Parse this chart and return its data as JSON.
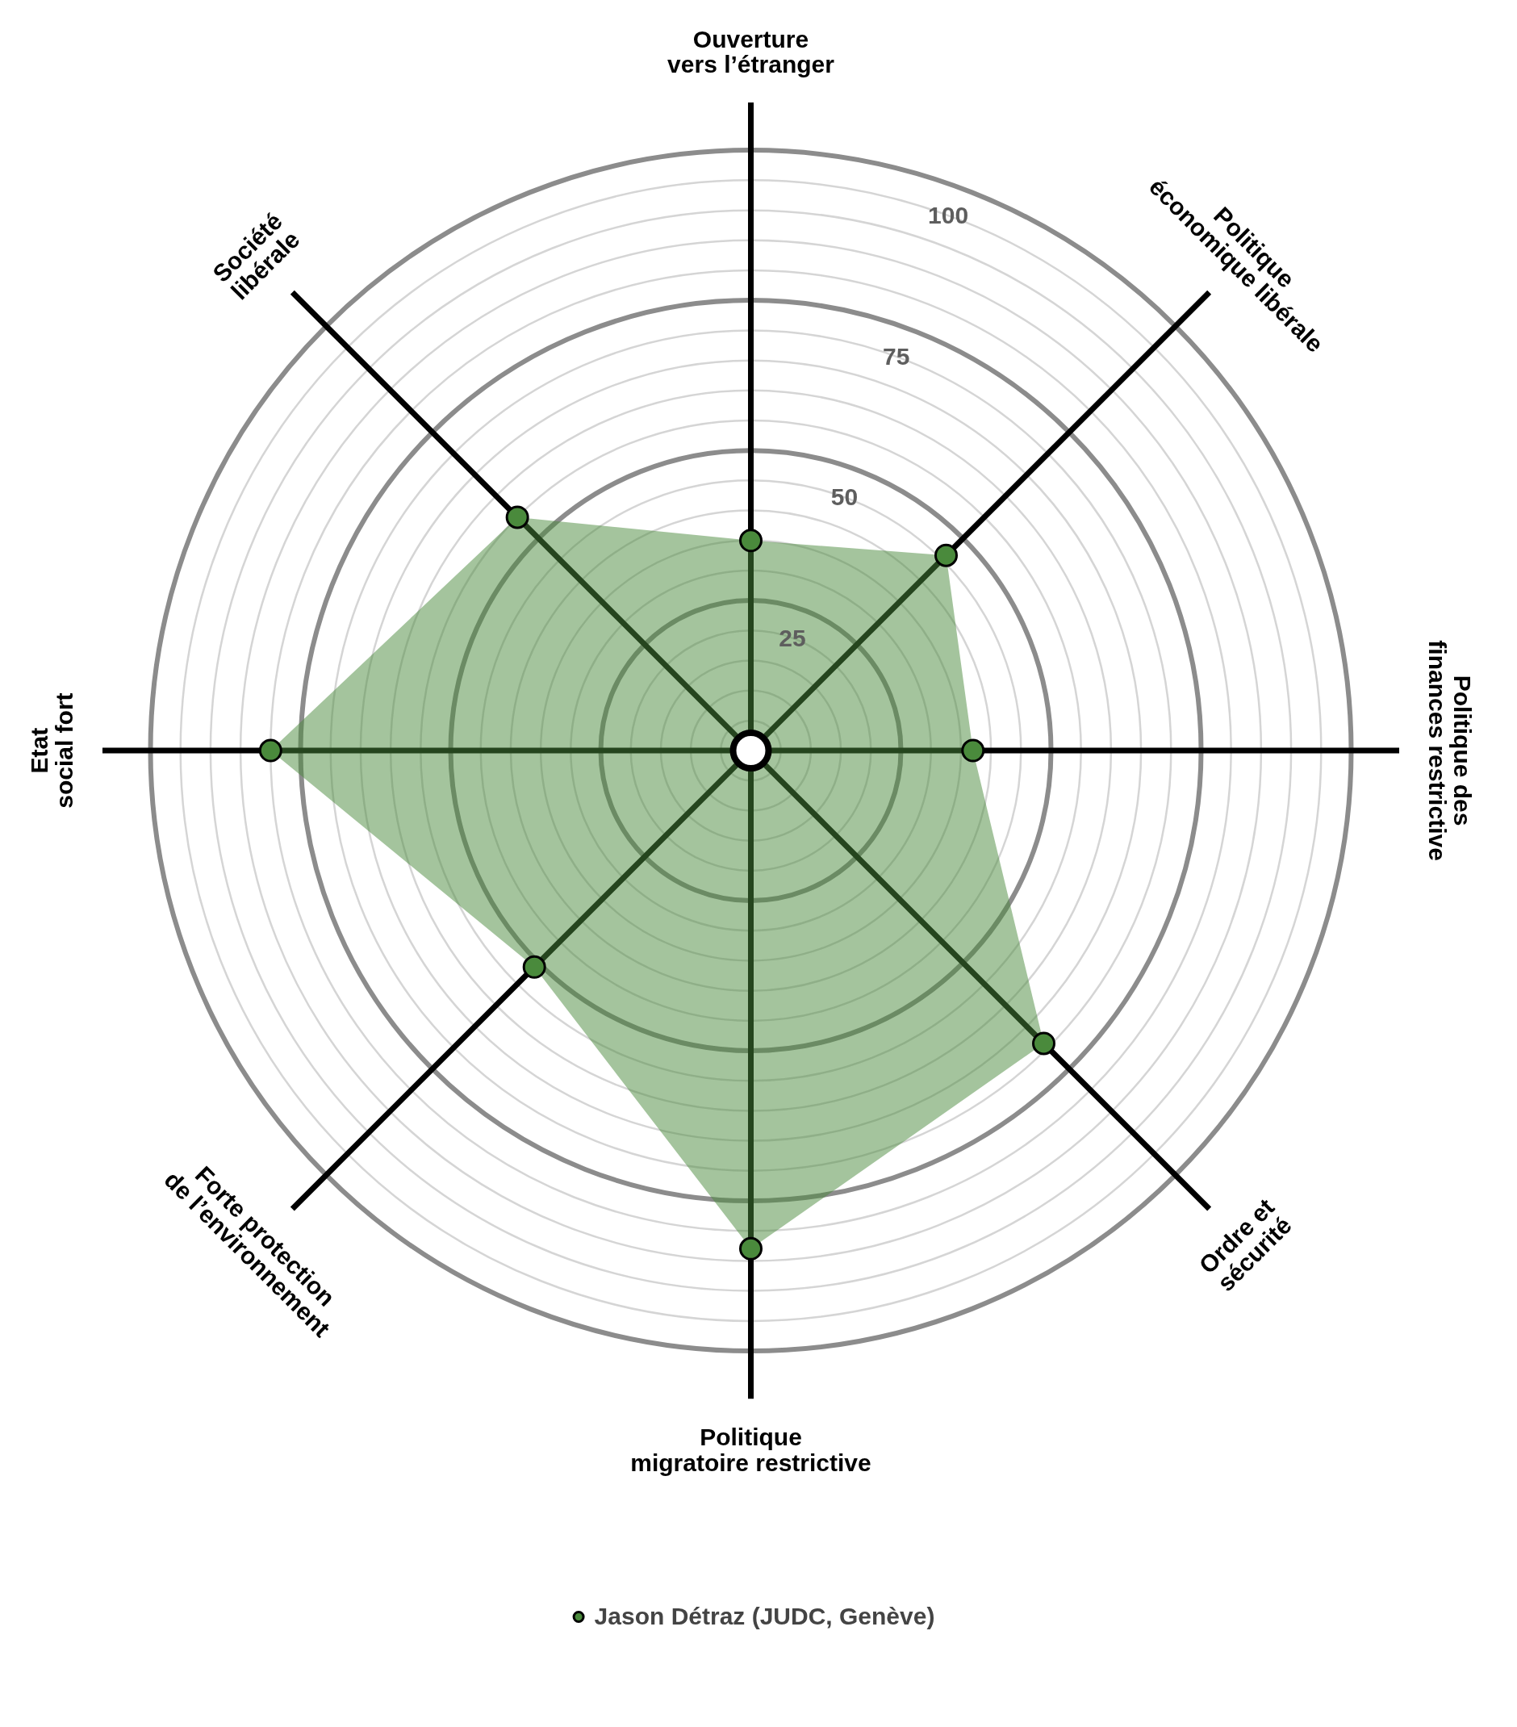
{
  "chart_data": {
    "type": "radar",
    "categories": [
      "Ouverture\nvers l’étranger",
      "Politique\néconomique libérale",
      "Politique des\nfinances restrictive",
      "Ordre et\nsécurité",
      "Politique\nmigratoire restrictive",
      "Forte protection\nde l’environnement",
      "Etat\nsocial fort",
      "Société\nlibérale"
    ],
    "series": [
      {
        "name": "Jason Détraz (JUDC, Genève)",
        "color": "#4a8a3c",
        "values": [
          35,
          46,
          37,
          69,
          83,
          51,
          80,
          55
        ]
      }
    ],
    "ylim": [
      0,
      100
    ],
    "yticks": [
      25,
      50,
      75,
      100
    ],
    "grid": true,
    "legend": "bottom",
    "marker": "circle"
  }
}
